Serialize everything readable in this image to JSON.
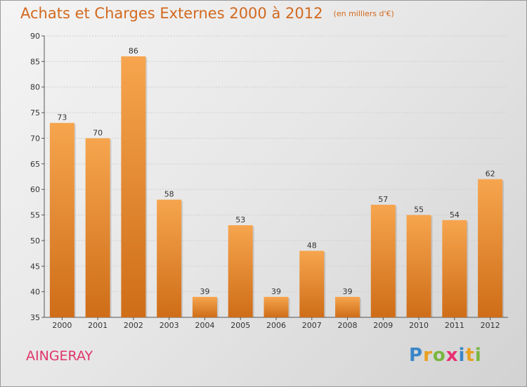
{
  "chart_data": {
    "type": "bar",
    "title": "Achats et Charges Externes 2000 à 2012",
    "subtitle": "(en milliers d'€)",
    "categories": [
      "2000",
      "2001",
      "2002",
      "2003",
      "2004",
      "2005",
      "2006",
      "2007",
      "2008",
      "2009",
      "2010",
      "2011",
      "2012"
    ],
    "values": [
      73,
      70,
      86,
      58,
      39,
      53,
      39,
      48,
      39,
      57,
      55,
      54,
      62
    ],
    "ylim": [
      35,
      90
    ],
    "yticks": [
      35,
      40,
      45,
      50,
      55,
      60,
      65,
      70,
      75,
      80,
      85,
      90
    ],
    "grid": true,
    "legend": "none",
    "bar_color_top": "#f6a54e",
    "bar_color_bottom": "#cf6d18"
  },
  "place_name": "AINGERAY",
  "brand": {
    "text": "Proxiti",
    "letter_colors": [
      "#3a86c8",
      "#e8a020",
      "#7ab640",
      "#e83070",
      "#3a86c8",
      "#e8a020",
      "#7ab640"
    ]
  }
}
